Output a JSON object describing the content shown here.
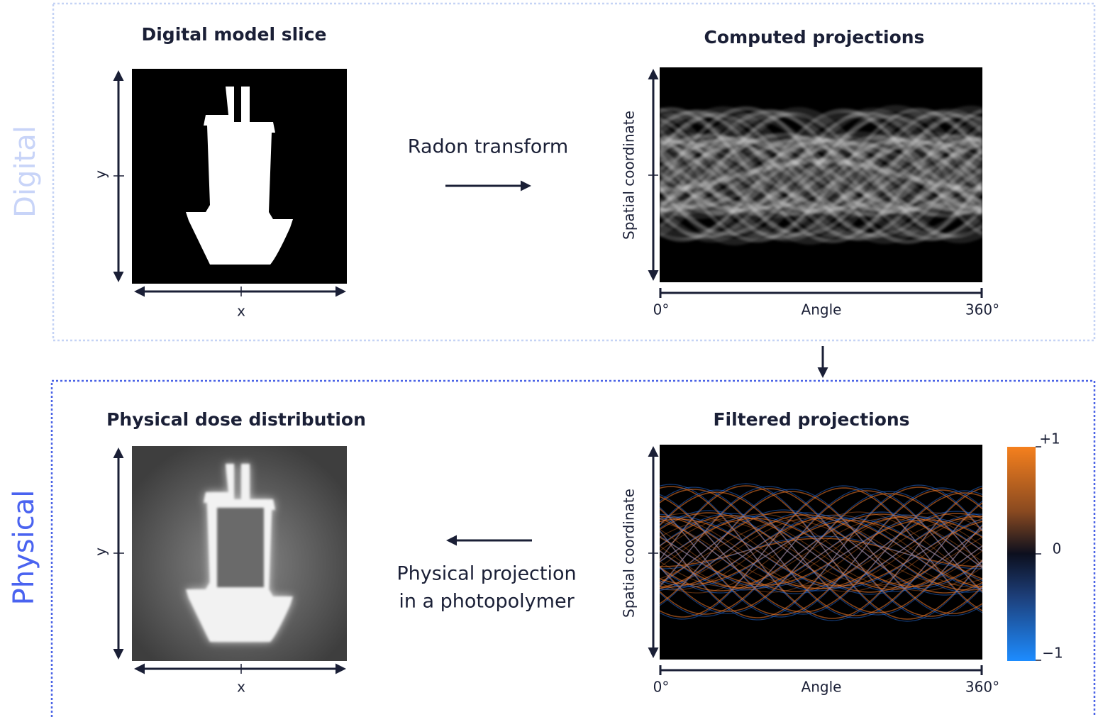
{
  "sections": [
    {
      "label": "Digital"
    },
    {
      "label": "Physical"
    }
  ],
  "panels": [
    {
      "title": "Digital model slice",
      "x_label": "x",
      "y_label": "y"
    },
    {
      "title": "Computed projections",
      "x_label": "Angle",
      "x_start": "0°",
      "x_end": "360°",
      "y_label": "Spatial coordinate"
    },
    {
      "title": "Physical dose distribution",
      "x_label": "x",
      "y_label": "y"
    },
    {
      "title": "Filtered projections",
      "x_label": "Angle",
      "x_start": "0°",
      "x_end": "360°",
      "y_label": "Spatial coordinate"
    }
  ],
  "arrows": [
    {
      "lines": [
        "Radon transform"
      ]
    },
    {
      "lines": [
        "Physical projection",
        "in a photopolymer"
      ]
    }
  ],
  "colorbar": {
    "top": "+1",
    "middle": "0",
    "bottom": "−1"
  }
}
